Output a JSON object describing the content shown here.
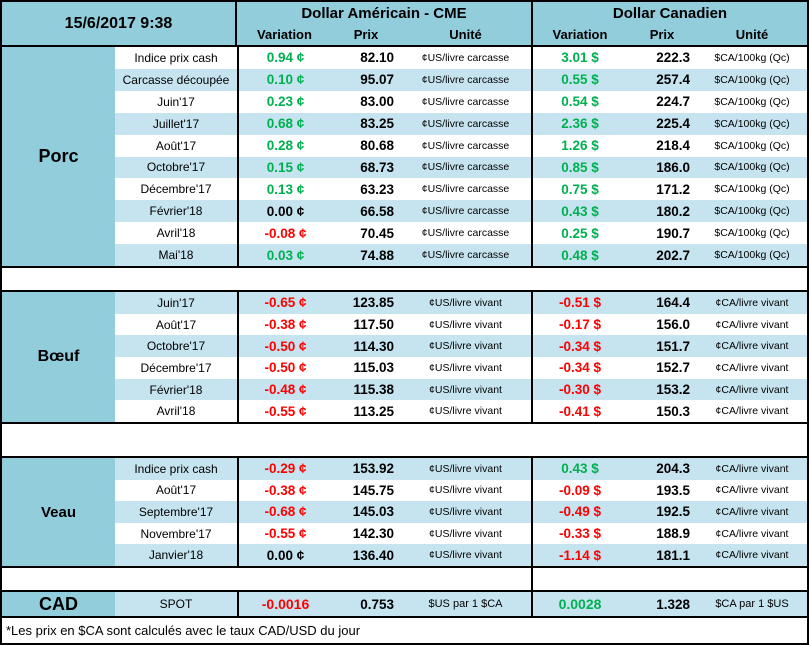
{
  "sheet": {
    "datetime": "15/6/2017 9:38",
    "us_block_title": "Dollar Américain - CME",
    "ca_block_title": "Dollar Canadien",
    "col_variation": "Variation",
    "col_prix": "Prix",
    "col_unite": "Unité",
    "footnote": "*Les prix en $CA sont calculés avec le taux CAD/USD du jour"
  },
  "colors": {
    "header_blue": "#92CDDC",
    "stripe_blue": "#C6E4F0",
    "positive_green": "#00B050",
    "negative_red": "#FF0000"
  },
  "sections": [
    {
      "label": "Porc",
      "units": {
        "us": "¢US/livre carcasse",
        "ca": "$CA/100kg (Qc)"
      },
      "rows": [
        {
          "label": "Indice prix cash",
          "us_var": "0.94 ¢",
          "us_trend": "up",
          "us_prix": "82.10",
          "ca_var": "3.01 $",
          "ca_trend": "up",
          "ca_prix": "222.3"
        },
        {
          "label": "Carcasse découpée",
          "us_var": "0.10 ¢",
          "us_trend": "up",
          "us_prix": "95.07",
          "ca_var": "0.55 $",
          "ca_trend": "up",
          "ca_prix": "257.4"
        },
        {
          "label": "Juin'17",
          "us_var": "0.23 ¢",
          "us_trend": "up",
          "us_prix": "83.00",
          "ca_var": "0.54 $",
          "ca_trend": "up",
          "ca_prix": "224.7"
        },
        {
          "label": "Juillet'17",
          "us_var": "0.68 ¢",
          "us_trend": "up",
          "us_prix": "83.25",
          "ca_var": "2.36 $",
          "ca_trend": "up",
          "ca_prix": "225.4"
        },
        {
          "label": "Août'17",
          "us_var": "0.28 ¢",
          "us_trend": "up",
          "us_prix": "80.68",
          "ca_var": "1.26 $",
          "ca_trend": "up",
          "ca_prix": "218.4"
        },
        {
          "label": "Octobre'17",
          "us_var": "0.15 ¢",
          "us_trend": "up",
          "us_prix": "68.73",
          "ca_var": "0.85 $",
          "ca_trend": "up",
          "ca_prix": "186.0"
        },
        {
          "label": "Décembre'17",
          "us_var": "0.13 ¢",
          "us_trend": "up",
          "us_prix": "63.23",
          "ca_var": "0.75 $",
          "ca_trend": "up",
          "ca_prix": "171.2"
        },
        {
          "label": "Février'18",
          "us_var": "0.00 ¢",
          "us_trend": "flat",
          "us_prix": "66.58",
          "ca_var": "0.43 $",
          "ca_trend": "up",
          "ca_prix": "180.2"
        },
        {
          "label": "Avril'18",
          "us_var": "-0.08 ¢",
          "us_trend": "down",
          "us_prix": "70.45",
          "ca_var": "0.25 $",
          "ca_trend": "up",
          "ca_prix": "190.7"
        },
        {
          "label": "Mai'18",
          "us_var": "0.03 ¢",
          "us_trend": "up",
          "us_prix": "74.88",
          "ca_var": "0.48 $",
          "ca_trend": "up",
          "ca_prix": "202.7"
        }
      ]
    },
    {
      "label": "Bœuf",
      "units": {
        "us": "¢US/livre vivant",
        "ca": "¢CA/livre vivant"
      },
      "rows": [
        {
          "label": "Juin'17",
          "us_var": "-0.65 ¢",
          "us_trend": "down",
          "us_prix": "123.85",
          "ca_var": "-0.51 $",
          "ca_trend": "down",
          "ca_prix": "164.4"
        },
        {
          "label": "Août'17",
          "us_var": "-0.38 ¢",
          "us_trend": "down",
          "us_prix": "117.50",
          "ca_var": "-0.17 $",
          "ca_trend": "down",
          "ca_prix": "156.0"
        },
        {
          "label": "Octobre'17",
          "us_var": "-0.50 ¢",
          "us_trend": "down",
          "us_prix": "114.30",
          "ca_var": "-0.34 $",
          "ca_trend": "down",
          "ca_prix": "151.7"
        },
        {
          "label": "Décembre'17",
          "us_var": "-0.50 ¢",
          "us_trend": "down",
          "us_prix": "115.03",
          "ca_var": "-0.34 $",
          "ca_trend": "down",
          "ca_prix": "152.7"
        },
        {
          "label": "Février'18",
          "us_var": "-0.48 ¢",
          "us_trend": "down",
          "us_prix": "115.38",
          "ca_var": "-0.30 $",
          "ca_trend": "down",
          "ca_prix": "153.2"
        },
        {
          "label": "Avril'18",
          "us_var": "-0.55 ¢",
          "us_trend": "down",
          "us_prix": "113.25",
          "ca_var": "-0.41 $",
          "ca_trend": "down",
          "ca_prix": "150.3"
        }
      ]
    },
    {
      "label": "Veau",
      "units": {
        "us": "¢US/livre vivant",
        "ca": "¢CA/livre vivant"
      },
      "rows": [
        {
          "label": "Indice prix cash",
          "us_var": "-0.29 ¢",
          "us_trend": "down",
          "us_prix": "153.92",
          "ca_var": "0.43 $",
          "ca_trend": "up",
          "ca_prix": "204.3"
        },
        {
          "label": "Août'17",
          "us_var": "-0.38 ¢",
          "us_trend": "down",
          "us_prix": "145.75",
          "ca_var": "-0.09 $",
          "ca_trend": "down",
          "ca_prix": "193.5"
        },
        {
          "label": "Septembre'17",
          "us_var": "-0.68 ¢",
          "us_trend": "down",
          "us_prix": "145.03",
          "ca_var": "-0.49 $",
          "ca_trend": "down",
          "ca_prix": "192.5"
        },
        {
          "label": "Novembre'17",
          "us_var": "-0.55 ¢",
          "us_trend": "down",
          "us_prix": "142.30",
          "ca_var": "-0.33 $",
          "ca_trend": "down",
          "ca_prix": "188.9"
        },
        {
          "label": "Janvier'18",
          "us_var": "0.00 ¢",
          "us_trend": "flat",
          "us_prix": "136.40",
          "ca_var": "-1.14 $",
          "ca_trend": "down",
          "ca_prix": "181.1"
        }
      ]
    }
  ],
  "cad": {
    "label": "CAD",
    "row_label": "SPOT",
    "us_var": "-0.0016",
    "us_trend": "down",
    "us_prix": "0.753",
    "us_unit": "$US par 1 $CA",
    "ca_var": "0.0028",
    "ca_trend": "up",
    "ca_prix": "1.328",
    "ca_unit": "$CA par 1 $US"
  }
}
